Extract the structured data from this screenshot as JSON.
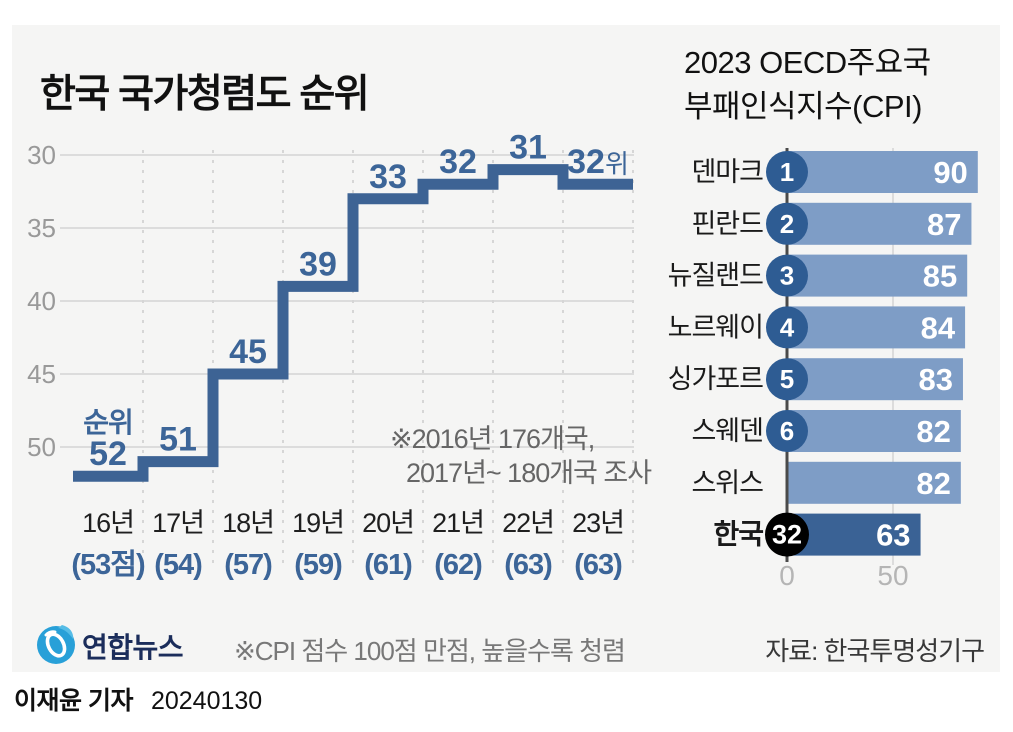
{
  "left_chart_title": "한국 국가청렴도 순위",
  "right_chart_title": {
    "line1": "2023 OECD주요국",
    "line2": "부패인식지수(CPI)"
  },
  "footer": {
    "brand": "연합뉴스",
    "note": "※CPI 점수 100점 만점, 높을수록 청렴",
    "source": "자료: 한국투명성기구"
  },
  "byline": {
    "name": "이재윤 기자",
    "date": "20240130"
  },
  "colors": {
    "step_line": "#3d6394",
    "value_label": "#3c6598",
    "grid": "#dcdcdc",
    "grid_dashed": "#d6d6d6",
    "ytick_text": "#999999",
    "year_text": "#1f1f1f",
    "bar_light": "#7e9dc6",
    "bar_dark": "#3a6295",
    "rank_circle": "#2e5c93",
    "korea_circle": "#000000",
    "axis_line": "#4a4a4a",
    "axis_tick_text": "#b5b5b5",
    "bar_value_text": "#ffffff",
    "country_text": "#1a1a1a"
  },
  "chart_data": [
    {
      "type": "line",
      "subtype": "step",
      "title": "한국 국가청렴도 순위",
      "unit_label": "순위",
      "rank_suffix": "위",
      "categories": [
        "16년",
        "17년",
        "18년",
        "19년",
        "20년",
        "21년",
        "22년",
        "23년"
      ],
      "category_scores": [
        "(53점)",
        "(54)",
        "(57)",
        "(59)",
        "(61)",
        "(62)",
        "(63)",
        "(63)"
      ],
      "values": [
        52,
        51,
        45,
        39,
        33,
        32,
        31,
        32
      ],
      "yticks": [
        30,
        35,
        40,
        45,
        50
      ],
      "ylim": [
        29,
        53
      ],
      "y_inverted": true,
      "grid": true,
      "note_lines": [
        "※2016년 176개국,",
        "2017년~ 180개국 조사"
      ]
    },
    {
      "type": "bar",
      "orientation": "horizontal",
      "title": "2023 OECD주요국 부패인식지수(CPI)",
      "categories": [
        "덴마크",
        "핀란드",
        "뉴질랜드",
        "노르웨이",
        "싱가포르",
        "스웨덴",
        "스위스",
        "한국"
      ],
      "values": [
        90,
        87,
        85,
        84,
        83,
        82,
        82,
        63
      ],
      "ranks": [
        1,
        2,
        3,
        4,
        5,
        6,
        null,
        32
      ],
      "highlight_category": "한국",
      "highlight_rank": 32,
      "xticks": [
        0,
        50
      ],
      "xlim": [
        0,
        95
      ],
      "grid": true
    }
  ]
}
